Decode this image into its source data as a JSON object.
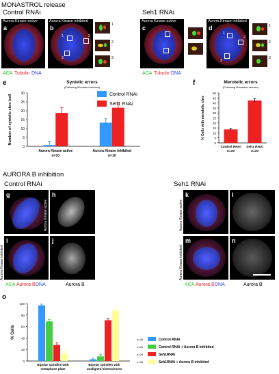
{
  "section_top": "MONASTROL release",
  "section_mid": "AURORA B inhibition",
  "top_panels": {
    "control_title": "Control RNAi",
    "seh1_title": "Seh1 RNAi",
    "a": {
      "letter": "a",
      "caption": "Aurora Kinase active"
    },
    "b": {
      "letter": "b",
      "caption": "Aurora Kinase inhibited",
      "inset_1": "1",
      "inset_2": "2",
      "inset_3": "3"
    },
    "c": {
      "letter": "c",
      "caption": "Aurora Kinase active"
    },
    "d": {
      "letter": "d",
      "caption": "Aurora Kinase inhibited",
      "inset_1": "1",
      "inset_2": "2",
      "inset_3": "3"
    },
    "legend_aca": "ACA",
    "legend_tub": "Tubulin",
    "legend_dna": "DNA"
  },
  "mid_panels": {
    "control_title": "Control RNAi",
    "seh1_title": "Seh1 RNAi",
    "g": "g",
    "h": "h",
    "i": "i",
    "j": "j",
    "k": "k",
    "l": "l",
    "m": "m",
    "n": "n",
    "active_label": "Aurora Kinase active",
    "inhibited_label": "Aurora Kinase inhibited",
    "legend_aca": "ACA",
    "legend_aurb": "Aurora B",
    "legend_dna": "DNA",
    "gray_caption": "Aurora B"
  },
  "colors": {
    "control": "#3399ff",
    "seh1": "#ee2222",
    "ctrl_inh": "#44cc44",
    "seh1_inh": "#ffff99",
    "aca_green": "#22cc22",
    "tub_red": "#ee2222",
    "dna_blue": "#2244ee"
  },
  "chart_data": [
    {
      "panel": "e",
      "type": "bar",
      "title": "Syntelic errors",
      "subtitle": "(Following Monastrol release)",
      "ylabel": "Number of syntelic chrs /cell",
      "ylim": [
        0,
        30
      ],
      "yticks": [
        "0",
        "5",
        "10",
        "15",
        "20",
        "25",
        "30"
      ],
      "categories": [
        "Aurora Kinase active",
        "Aurora Kinase inhibited"
      ],
      "category_sub": [
        "n=10",
        "n=10"
      ],
      "series": [
        {
          "name": "Control RNAi",
          "values": [
            0.7,
            13.3
          ],
          "errors": [
            2.2,
            2.2
          ]
        },
        {
          "name": "Seh1 RNAi",
          "values": [
            18.8,
            21.7
          ],
          "errors": [
            3.0,
            3.0
          ]
        }
      ],
      "legend_position": "top-right"
    },
    {
      "panel": "f",
      "type": "bar",
      "title": "Merotelic errors",
      "subtitle": "(Following Monastrol release)",
      "ylabel": "% Cells with merotelic chrs",
      "ylim": [
        0,
        50
      ],
      "yticks": [
        "0",
        "5",
        "10",
        "15",
        "20",
        "25",
        "30",
        "35",
        "40",
        "45",
        "50"
      ],
      "categories": [
        "Control RNAi",
        "Seh1 RNAi"
      ],
      "category_sub": [
        "n=30",
        "n=30"
      ],
      "values": [
        13.5,
        42.5
      ],
      "errors": [
        1.0,
        1.8
      ]
    },
    {
      "panel": "o",
      "type": "bar",
      "ylabel": "% Cells",
      "ylim": [
        0,
        100
      ],
      "yticks": [
        "0",
        "20",
        "40",
        "60",
        "80",
        "100"
      ],
      "categories": [
        "Bipolar spindles with metaphase plate",
        "Bipolar spindles with unaligned kinetochores"
      ],
      "category_lines": [
        [
          "Bipolar spindles with",
          "metaphase plate"
        ],
        [
          "Bipolar spindles with",
          "unaligned kinetochores"
        ]
      ],
      "series": [
        {
          "name": "Control RNAi",
          "n": "n=36",
          "values": [
            97,
            3
          ],
          "errors": [
            2,
            2
          ]
        },
        {
          "name": "Control RNAi + Aurora B inhibited",
          "n": "n=26",
          "values": [
            69,
            8
          ],
          "errors": [
            3,
            3
          ]
        },
        {
          "name": "Seh1RNAi",
          "n": "n=28",
          "values": [
            28,
            71
          ],
          "errors": [
            4,
            3
          ]
        },
        {
          "name": "Seh1RNAi + Aurora B inhibited",
          "n": "n=35",
          "values": [
            13,
            88
          ],
          "errors": [
            5,
            6
          ]
        }
      ],
      "legend_position": "right"
    }
  ],
  "chart_labels": {
    "e_letter": "e",
    "f_letter": "f",
    "o_letter": "o"
  }
}
